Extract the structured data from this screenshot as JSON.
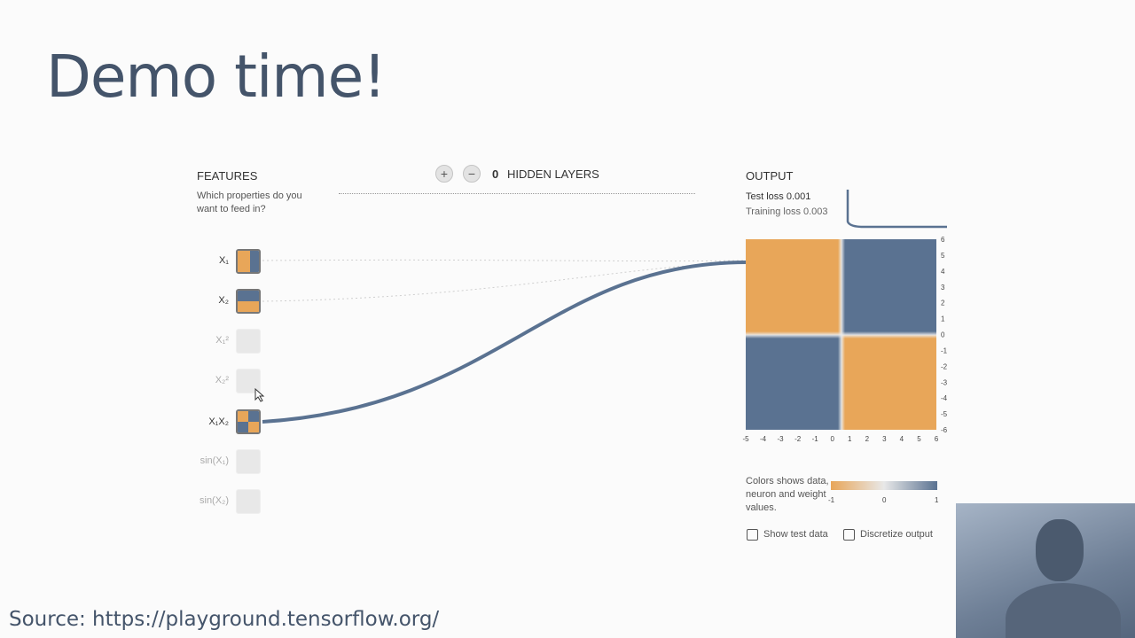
{
  "slide": {
    "title": "Demo time!",
    "source": "Source: https://playground.tensorflow.org/"
  },
  "features": {
    "title": "FEATURES",
    "description": "Which properties do you want to feed in?",
    "items": [
      {
        "label": "X₁",
        "active": true
      },
      {
        "label": "X₂",
        "active": true
      },
      {
        "label": "X₁²",
        "active": false
      },
      {
        "label": "X₂²",
        "active": false
      },
      {
        "label": "X₁X₂",
        "active": true
      },
      {
        "label": "sin(X₁)",
        "active": false
      },
      {
        "label": "sin(X₂)",
        "active": false
      }
    ]
  },
  "layers": {
    "add": "+",
    "remove": "−",
    "count": "0",
    "label": "HIDDEN LAYERS"
  },
  "output": {
    "title": "OUTPUT",
    "test_loss": "Test loss 0.001",
    "training_loss": "Training loss 0.003",
    "ticks": [
      "-6",
      "-5",
      "-4",
      "-3",
      "-2",
      "-1",
      "0",
      "1",
      "2",
      "3",
      "4",
      "5",
      "6"
    ],
    "x_ticks": [
      "-5",
      "-4",
      "-3",
      "-2",
      "-1",
      "0",
      "1",
      "2",
      "3",
      "4",
      "5",
      "6"
    ],
    "y_ticks": [
      "6",
      "5",
      "4",
      "3",
      "2",
      "1",
      "0",
      "-1",
      "-2",
      "-3",
      "-4",
      "-5",
      "-6"
    ]
  },
  "legend": {
    "text": "Colors shows data, neuron and weight values.",
    "min": "-1",
    "mid": "0",
    "max": "1"
  },
  "options": {
    "show_test_data": "Show test data",
    "discretize_output": "Discretize output"
  },
  "colors": {
    "orange": "#e8a659",
    "blue": "#5a7291"
  }
}
